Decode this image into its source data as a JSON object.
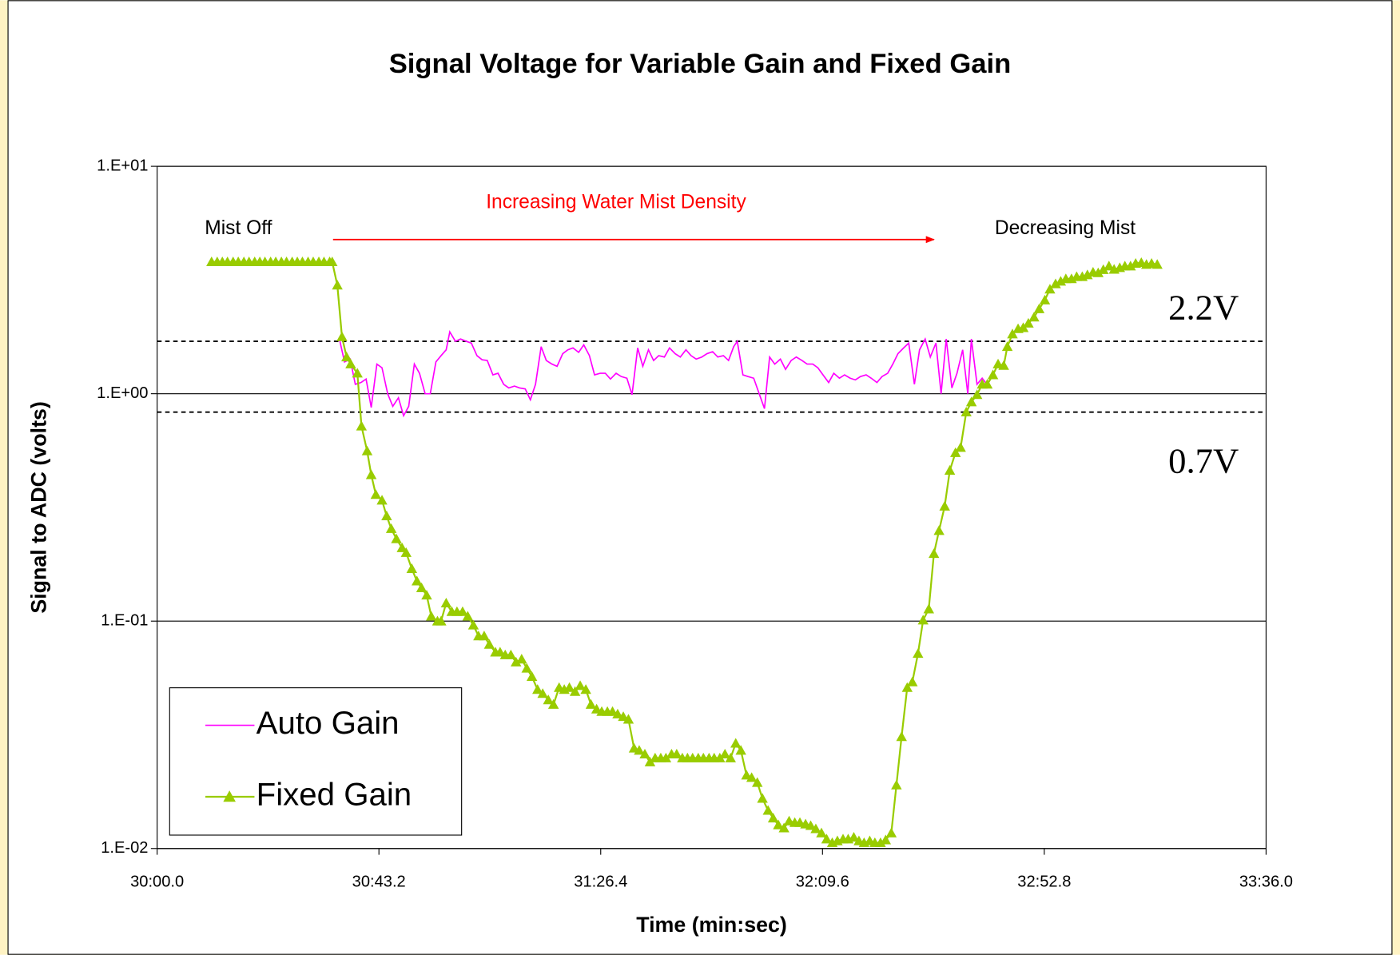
{
  "chart_data": {
    "type": "line",
    "title": "Signal Voltage for Variable Gain and Fixed Gain",
    "x_label": "Time (min:sec)",
    "y_label": "Signal to ADC (volts)",
    "log_y": true,
    "grid": true,
    "legend_position": "lower left",
    "xlim": [
      1800,
      2016
    ],
    "xticks": [
      {
        "value": 1800,
        "label": "30:00.0"
      },
      {
        "value": 1843.2,
        "label": "30:43.2"
      },
      {
        "value": 1886.4,
        "label": "31:26.4"
      },
      {
        "value": 1929.6,
        "label": "32:09.6"
      },
      {
        "value": 1972.8,
        "label": "32:52.8"
      },
      {
        "value": 2016,
        "label": "33:36.0"
      }
    ],
    "ylim": [
      0.01,
      10
    ],
    "yticks": [
      {
        "value": 0.01,
        "label": "1.E-02"
      },
      {
        "value": 0.1,
        "label": "1.E-01"
      },
      {
        "value": 1,
        "label": "1.E+00"
      },
      {
        "value": 10,
        "label": "1.E+01"
      }
    ],
    "reference_lines": [
      1.7,
      0.83
    ],
    "annotations": [
      "Mist Off",
      "Increasing Water Mist Density",
      "Decreasing Mist",
      "2.2V",
      "0.7V"
    ],
    "series": [
      {
        "name": "Auto Gain",
        "color": "#ff00ff",
        "marker": "none",
        "x": [
          1835.5,
          1836.5,
          1837.6,
          1838.6,
          1839.7,
          1840.7,
          1841.7,
          1842.8,
          1843.8,
          1844.9,
          1845.9,
          1847.0,
          1848.0,
          1849.0,
          1850.1,
          1851.1,
          1852.2,
          1853.2,
          1854.3,
          1855.3,
          1856.3,
          1857.0,
          1858.1,
          1859.1,
          1860.2,
          1861.2,
          1862.3,
          1863.3,
          1864.3,
          1865.4,
          1866.4,
          1867.5,
          1868.5,
          1869.6,
          1870.6,
          1871.7,
          1872.7,
          1873.7,
          1874.8,
          1875.8,
          1876.9,
          1877.9,
          1879.0,
          1880.0,
          1881.0,
          1882.1,
          1883.1,
          1884.2,
          1885.2,
          1886.3,
          1887.3,
          1888.3,
          1889.4,
          1890.4,
          1891.5,
          1892.5,
          1893.6,
          1894.6,
          1895.7,
          1896.7,
          1897.7,
          1898.8,
          1899.8,
          1900.9,
          1901.9,
          1903.0,
          1904.0,
          1905.0,
          1906.1,
          1907.1,
          1908.2,
          1909.2,
          1910.3,
          1911.3,
          1912.3,
          1913.0,
          1914.1,
          1915.1,
          1916.2,
          1917.2,
          1918.3,
          1919.3,
          1920.3,
          1921.4,
          1922.4,
          1923.5,
          1924.5,
          1925.6,
          1926.6,
          1927.7,
          1928.7,
          1929.7,
          1930.8,
          1931.8,
          1932.9,
          1933.9,
          1935.0,
          1936.0,
          1937.0,
          1938.1,
          1939.1,
          1940.2,
          1941.2,
          1942.3,
          1943.3,
          1944.3,
          1945.4,
          1946.4,
          1947.5,
          1948.5,
          1949.6,
          1950.6,
          1951.7,
          1952.7,
          1953.7,
          1954.8,
          1955.8,
          1956.9,
          1957.9,
          1958.6,
          1959.7,
          1960.7,
          1961.6
        ],
        "values": [
          1.74,
          1.38,
          1.42,
          1.1,
          1.12,
          1.16,
          0.87,
          1.35,
          1.3,
          1.0,
          0.88,
          0.96,
          0.8,
          0.88,
          1.35,
          1.23,
          1.0,
          1.0,
          1.38,
          1.47,
          1.56,
          1.87,
          1.7,
          1.74,
          1.7,
          1.67,
          1.47,
          1.41,
          1.4,
          1.21,
          1.23,
          1.1,
          1.06,
          1.08,
          1.06,
          1.05,
          0.94,
          1.1,
          1.61,
          1.4,
          1.35,
          1.32,
          1.5,
          1.56,
          1.59,
          1.52,
          1.64,
          1.47,
          1.21,
          1.23,
          1.23,
          1.16,
          1.23,
          1.19,
          1.17,
          0.99,
          1.59,
          1.32,
          1.56,
          1.4,
          1.47,
          1.45,
          1.59,
          1.5,
          1.45,
          1.56,
          1.47,
          1.42,
          1.45,
          1.5,
          1.53,
          1.45,
          1.47,
          1.4,
          1.61,
          1.7,
          1.21,
          1.19,
          1.17,
          1.01,
          0.86,
          1.45,
          1.35,
          1.42,
          1.28,
          1.4,
          1.45,
          1.4,
          1.35,
          1.35,
          1.3,
          1.21,
          1.12,
          1.23,
          1.17,
          1.21,
          1.17,
          1.15,
          1.19,
          1.21,
          1.17,
          1.12,
          1.19,
          1.23,
          1.35,
          1.5,
          1.59,
          1.67,
          1.1,
          1.56,
          1.74,
          1.45,
          1.67,
          1.0,
          1.74,
          1.06,
          1.23,
          1.56,
          1.0,
          1.74,
          1.1,
          1.17,
          1.1
        ]
      },
      {
        "name": "Fixed Gain",
        "color": "#99cc00",
        "marker": "triangle",
        "x": [
          1810.6,
          1811.7,
          1812.7,
          1813.7,
          1814.8,
          1815.8,
          1816.9,
          1817.9,
          1819.0,
          1820.0,
          1821.0,
          1822.1,
          1823.1,
          1824.2,
          1825.2,
          1826.3,
          1827.3,
          1828.3,
          1829.4,
          1830.4,
          1831.5,
          1832.5,
          1833.6,
          1834.1,
          1835.1,
          1836.0,
          1836.9,
          1837.7,
          1839.0,
          1839.8,
          1840.9,
          1841.7,
          1842.6,
          1843.8,
          1844.7,
          1845.6,
          1846.6,
          1847.7,
          1848.5,
          1849.6,
          1850.6,
          1851.5,
          1852.5,
          1853.4,
          1854.6,
          1855.3,
          1856.3,
          1857.4,
          1858.4,
          1859.5,
          1860.5,
          1861.6,
          1862.6,
          1863.7,
          1864.7,
          1865.9,
          1866.8,
          1867.8,
          1868.9,
          1869.9,
          1871.0,
          1872.0,
          1873.0,
          1874.1,
          1875.1,
          1876.2,
          1877.2,
          1878.3,
          1879.3,
          1880.3,
          1881.4,
          1882.4,
          1883.5,
          1884.5,
          1885.6,
          1886.6,
          1887.7,
          1888.7,
          1889.7,
          1890.8,
          1891.8,
          1892.9,
          1893.9,
          1895.0,
          1896.0,
          1897.0,
          1898.1,
          1899.1,
          1900.2,
          1901.2,
          1902.3,
          1903.3,
          1904.3,
          1905.4,
          1906.4,
          1907.5,
          1908.5,
          1909.6,
          1910.6,
          1911.7,
          1912.7,
          1913.7,
          1914.8,
          1915.8,
          1916.9,
          1917.9,
          1919.0,
          1920.0,
          1921.0,
          1922.1,
          1923.1,
          1924.2,
          1925.2,
          1926.3,
          1927.3,
          1928.3,
          1929.4,
          1930.4,
          1931.5,
          1932.5,
          1933.6,
          1934.6,
          1935.7,
          1936.7,
          1937.7,
          1938.8,
          1939.8,
          1940.9,
          1941.9,
          1943.0,
          1944.0,
          1945.0,
          1946.1,
          1947.1,
          1948.2,
          1949.2,
          1950.3,
          1951.3,
          1952.3,
          1953.4,
          1954.4,
          1955.5,
          1956.5,
          1957.6,
          1958.6,
          1959.7,
          1960.7,
          1961.7,
          1962.8,
          1963.8,
          1964.9,
          1965.6,
          1966.6,
          1967.7,
          1968.7,
          1969.7,
          1970.8,
          1971.8,
          1972.9,
          1973.9,
          1975.0,
          1976.0,
          1977.0,
          1978.1,
          1979.1,
          1980.2,
          1981.2,
          1982.3,
          1983.3,
          1984.3,
          1985.4,
          1986.4,
          1987.5,
          1988.5,
          1989.6,
          1990.6,
          1991.7,
          1992.7,
          1993.7,
          1994.8
        ],
        "values": [
          3.8,
          3.8,
          3.8,
          3.8,
          3.8,
          3.8,
          3.8,
          3.8,
          3.8,
          3.8,
          3.8,
          3.8,
          3.8,
          3.8,
          3.8,
          3.8,
          3.8,
          3.8,
          3.8,
          3.8,
          3.8,
          3.8,
          3.8,
          3.8,
          3.0,
          1.78,
          1.45,
          1.35,
          1.23,
          0.72,
          0.56,
          0.44,
          0.36,
          0.34,
          0.29,
          0.255,
          0.23,
          0.21,
          0.2,
          0.17,
          0.15,
          0.14,
          0.13,
          0.105,
          0.1,
          0.1,
          0.12,
          0.11,
          0.11,
          0.11,
          0.105,
          0.096,
          0.086,
          0.086,
          0.079,
          0.073,
          0.073,
          0.071,
          0.071,
          0.066,
          0.068,
          0.062,
          0.057,
          0.05,
          0.048,
          0.045,
          0.043,
          0.051,
          0.05,
          0.051,
          0.049,
          0.052,
          0.05,
          0.043,
          0.041,
          0.04,
          0.04,
          0.04,
          0.039,
          0.038,
          0.037,
          0.0276,
          0.027,
          0.026,
          0.024,
          0.025,
          0.025,
          0.025,
          0.026,
          0.026,
          0.025,
          0.025,
          0.025,
          0.025,
          0.025,
          0.025,
          0.025,
          0.025,
          0.026,
          0.025,
          0.029,
          0.027,
          0.021,
          0.0205,
          0.0195,
          0.0166,
          0.0147,
          0.0136,
          0.0127,
          0.0123,
          0.0132,
          0.013,
          0.013,
          0.0128,
          0.0126,
          0.0122,
          0.0117,
          0.011,
          0.0106,
          0.0108,
          0.011,
          0.011,
          0.0112,
          0.0108,
          0.0106,
          0.0108,
          0.0106,
          0.0106,
          0.0109,
          0.0117,
          0.019,
          0.031,
          0.051,
          0.054,
          0.072,
          0.101,
          0.113,
          0.198,
          0.25,
          0.32,
          0.46,
          0.55,
          0.58,
          0.83,
          0.92,
          0.99,
          1.1,
          1.1,
          1.21,
          1.35,
          1.33,
          1.61,
          1.83,
          1.93,
          1.95,
          2.04,
          2.17,
          2.36,
          2.58,
          2.88,
          3.04,
          3.12,
          3.2,
          3.2,
          3.27,
          3.27,
          3.33,
          3.42,
          3.4,
          3.51,
          3.64,
          3.52,
          3.58,
          3.64,
          3.64,
          3.74,
          3.77,
          3.7,
          3.74,
          3.7
        ]
      }
    ]
  }
}
